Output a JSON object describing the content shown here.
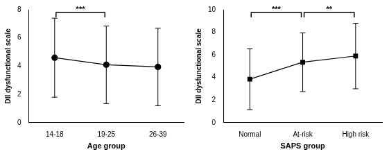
{
  "chart_data": [
    {
      "type": "line",
      "x_label": "Age group",
      "y_label": "DII dysfunctional scale",
      "categories": [
        "14-18",
        "19-25",
        "26-39"
      ],
      "values": [
        4.6,
        4.1,
        3.95
      ],
      "error": [
        2.8,
        2.75,
        2.75
      ],
      "color": "#000000",
      "marker": "circle",
      "ylim": [
        0,
        8
      ],
      "yticks": [
        0,
        2,
        4,
        6,
        8
      ],
      "grid": false,
      "annotations": [
        {
          "from": "14-18",
          "to": "19-25",
          "text": "***"
        }
      ]
    },
    {
      "type": "line",
      "x_label": "SAPS group",
      "y_label": "DII dysfunctional scale",
      "categories": [
        "Normal",
        "At-risk",
        "High risk"
      ],
      "values": [
        3.85,
        5.35,
        5.9
      ],
      "error": [
        2.7,
        2.6,
        2.9
      ],
      "color": "#000000",
      "marker": "square",
      "ylim": [
        0,
        10
      ],
      "yticks": [
        0,
        2,
        4,
        6,
        8,
        10
      ],
      "grid": false,
      "annotations": [
        {
          "from": "Normal",
          "to": "At-risk",
          "text": "***"
        },
        {
          "from": "At-risk",
          "to": "High risk",
          "text": "**"
        }
      ]
    }
  ]
}
